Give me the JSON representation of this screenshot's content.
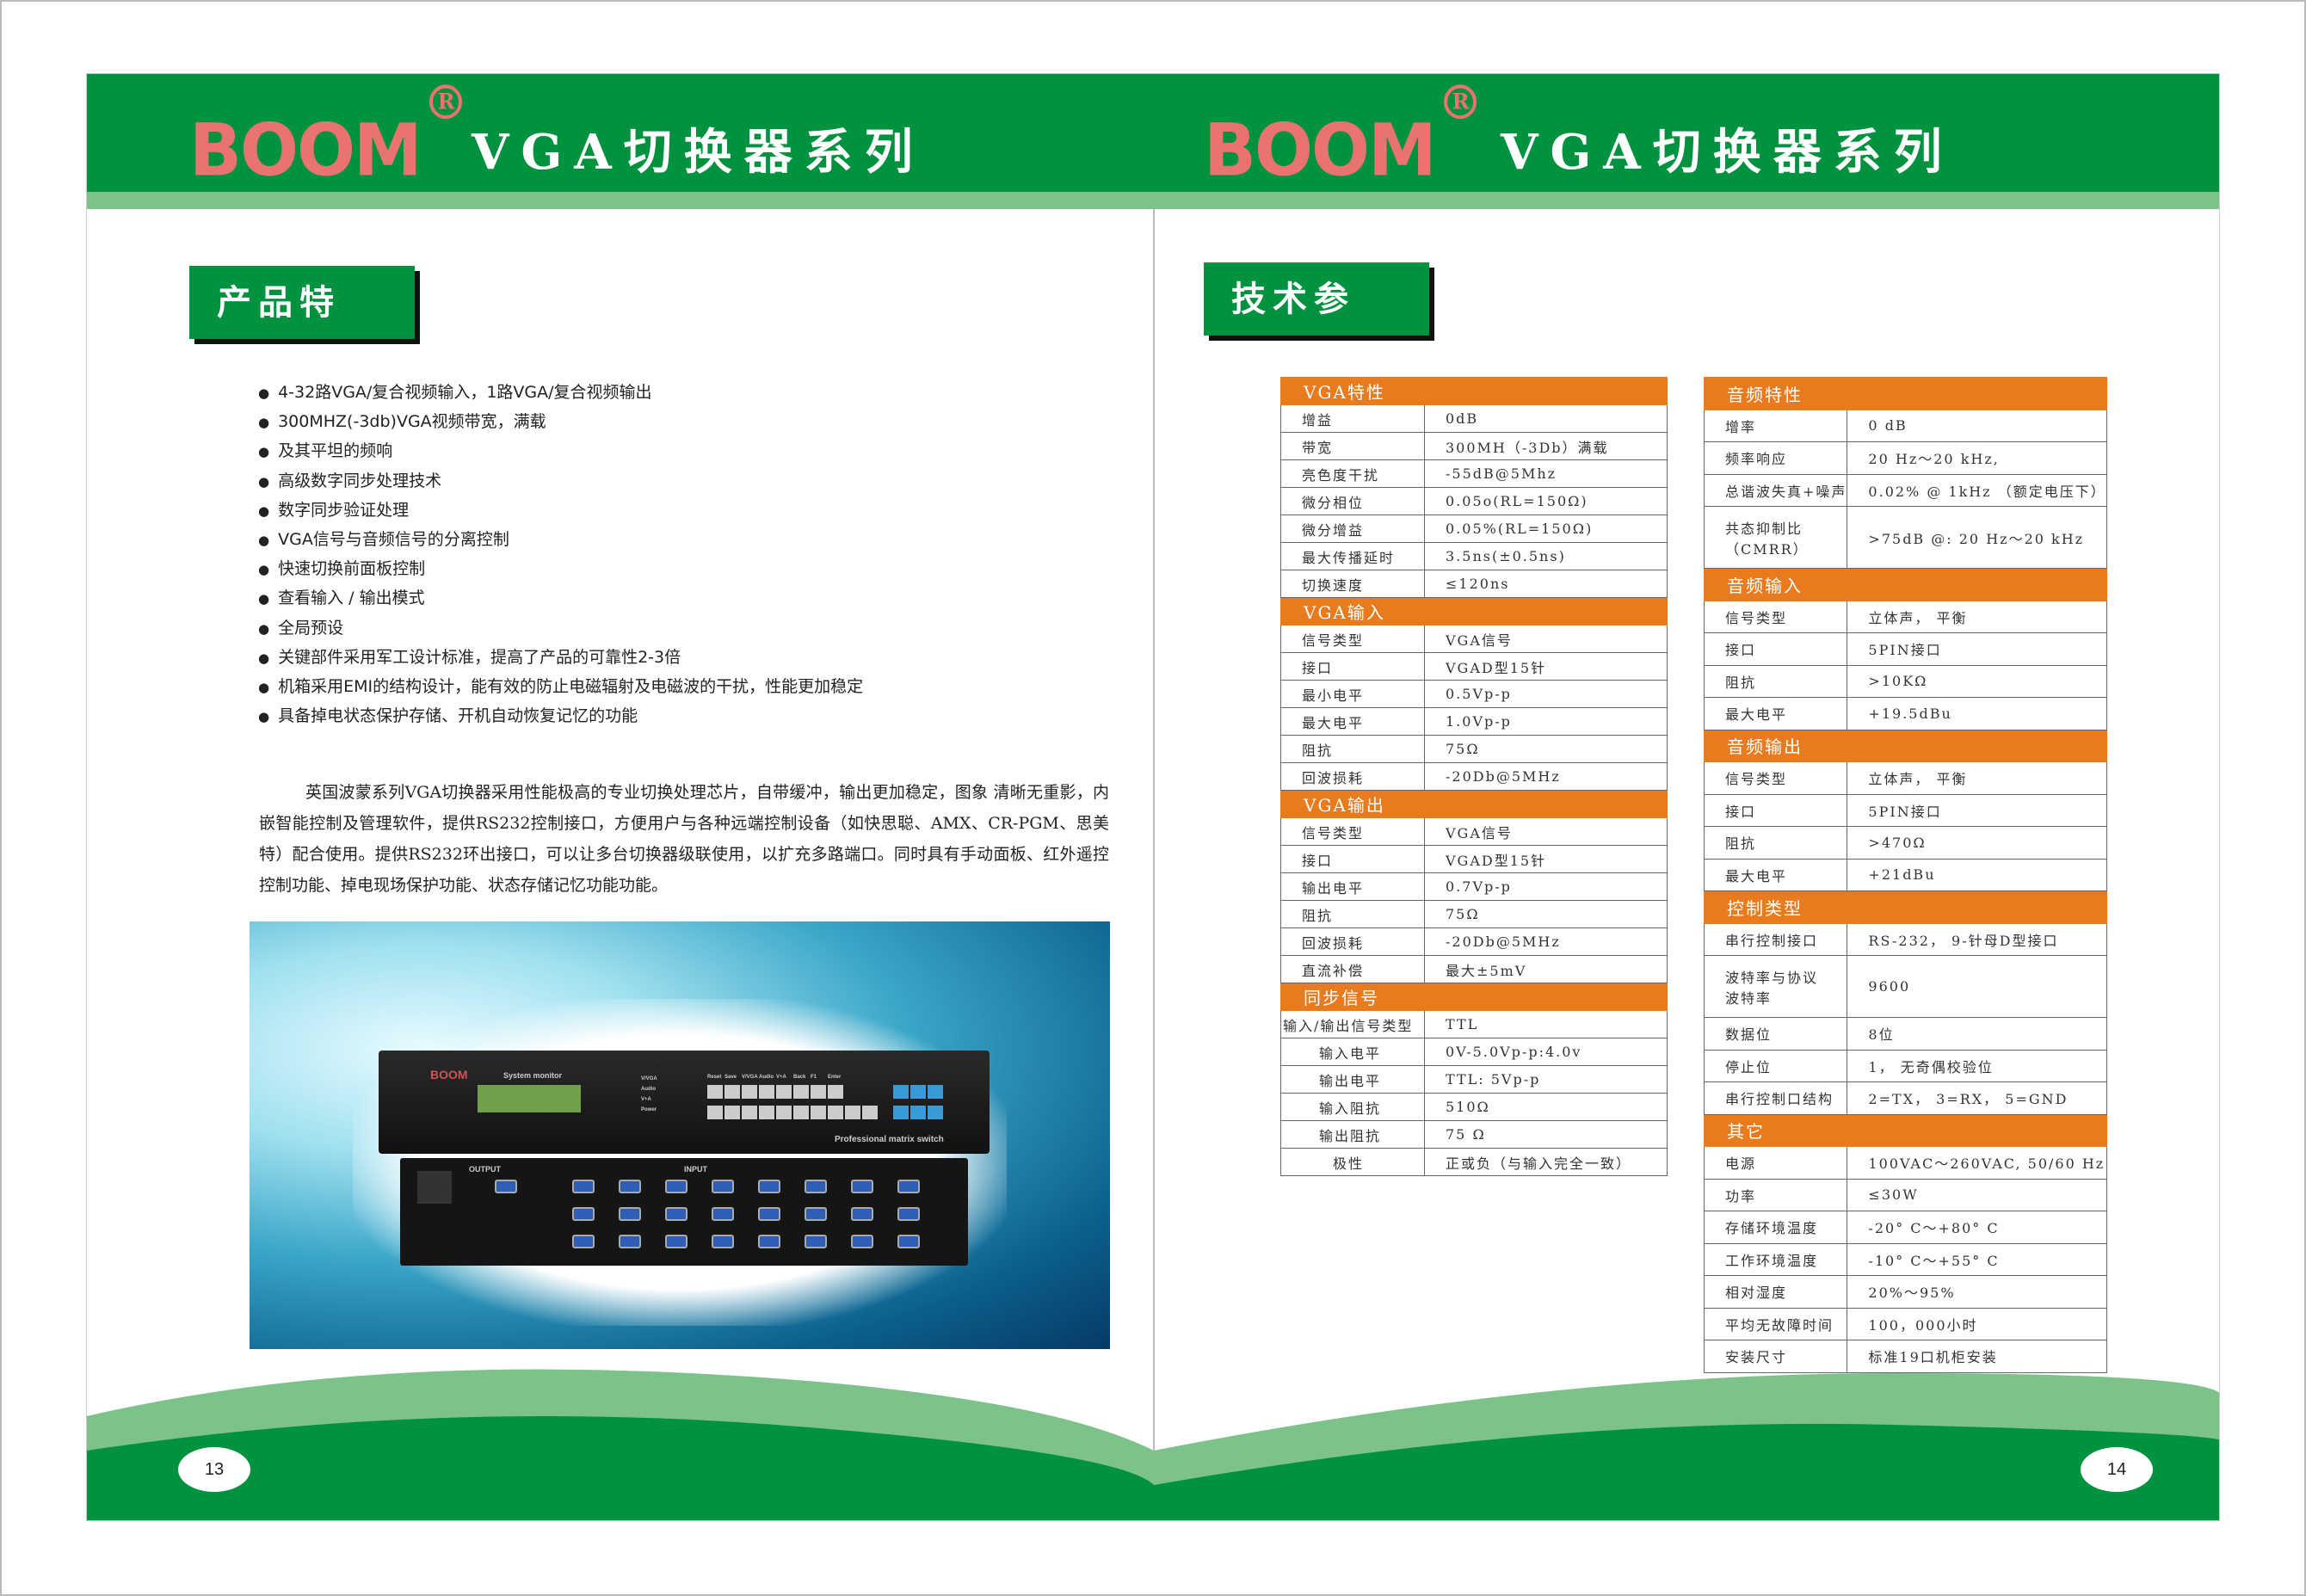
{
  "brand": {
    "logo_text": "BOOM",
    "registered": "R"
  },
  "left_page": {
    "header_title": "VGA切换器系列",
    "section_title": "产品特性：",
    "features": [
      "4-32路VGA/复合视频输入，1路VGA/复合视频输出",
      "300MHZ(-3db)VGA视频带宽，满载",
      "及其平坦的频响",
      "高级数字同步处理技术",
      "数字同步验证处理",
      "VGA信号与音频信号的分离控制",
      "快速切换前面板控制",
      "查看输入 / 输出模式",
      "全局预设",
      "关键部件采用军工设计标准，提高了产品的可靠性2-3倍",
      "机箱采用EMI的结构设计，能有效的防止电磁辐射及电磁波的干扰，性能更加稳定",
      "具备掉电状态保护存储、开机自动恢复记忆的功能"
    ],
    "description": "英国波蒙系列VGA切换器采用性能极高的专业切换处理芯片，自带缓冲，输出更加稳定，图象 清晰无重影，内嵌智能控制及管理软件，提供RS232控制接口，方便用户与各种远端控制设备（如快思聪、AMX、CR-PGM、思美特）配合使用。提供RS232环出接口，可以让多台切换器级联使用，以扩充多路端口。同时具有手动面板、红外遥控控制功能、掉电现场保护功能、状态存储记忆功能功能。",
    "product_photo": {
      "panel_label": "System monitor",
      "tagline": "Professional matrix switch",
      "buttons_top": [
        "Reset",
        "Save",
        "V/VGA",
        "Audio",
        "V+A",
        "Back",
        "F1",
        "Enter"
      ],
      "indicators": [
        "V/VGA",
        "Audio",
        "V+A",
        "Power"
      ],
      "rear_output": "OUTPUT",
      "rear_input": "INPUT"
    },
    "page_number": "13"
  },
  "right_page": {
    "header_title": "VGA切换器系列",
    "section_title": "技术参数：",
    "table_left": [
      {
        "header": "VGA特性",
        "rows": [
          [
            "增益",
            "0dB"
          ],
          [
            "带宽",
            "300MH（-3Db）满载"
          ],
          [
            "亮色度干扰",
            "-55dB@5Mhz"
          ],
          [
            "微分相位",
            "0.05o(RL=150Ω)"
          ],
          [
            "微分增益",
            "0.05%(RL=150Ω)"
          ],
          [
            "最大传播延时",
            "3.5ns(±0.5ns)"
          ],
          [
            "切换速度",
            "≤120ns"
          ]
        ]
      },
      {
        "header": "VGA输入",
        "rows": [
          [
            "信号类型",
            "VGA信号"
          ],
          [
            "接口",
            "VGAD型15针"
          ],
          [
            "最小电平",
            "0.5Vp-p"
          ],
          [
            "最大电平",
            "1.0Vp-p"
          ],
          [
            "阻抗",
            "75Ω"
          ],
          [
            "回波损耗",
            "-20Db@5MHz"
          ]
        ]
      },
      {
        "header": "VGA输出",
        "rows": [
          [
            "信号类型",
            "VGA信号"
          ],
          [
            "接口",
            "VGAD型15针"
          ],
          [
            "输出电平",
            "0.7Vp-p"
          ],
          [
            "阻抗",
            "75Ω"
          ],
          [
            "回波损耗",
            "-20Db@5MHz"
          ],
          [
            "直流补偿",
            "最大±5mV"
          ]
        ]
      },
      {
        "header": "同步信号",
        "rows": [
          [
            "输入/输出信号类型",
            "TTL"
          ],
          [
            "输入电平",
            "0V-5.0Vp-p:4.0v"
          ],
          [
            "输出电平",
            "TTL: 5Vp-p"
          ],
          [
            "输入阻抗",
            "510Ω"
          ],
          [
            "输出阻抗",
            "75 Ω"
          ],
          [
            "极性",
            "正或负（与输入完全一致）"
          ]
        ]
      }
    ],
    "table_right": [
      {
        "header": "音频特性",
        "rows": [
          [
            "增率",
            "0 dB"
          ],
          [
            "频率响应",
            "20 Hz～20 kHz,"
          ],
          [
            "总谐波失真+噪声",
            "0.02% @ 1kHz （额定电压下）"
          ],
          [
            "共态抑制比\n（CMRR）",
            ">75dB @: 20 Hz～20 kHz"
          ]
        ]
      },
      {
        "header": "音频输入",
        "rows": [
          [
            "信号类型",
            "立体声， 平衡"
          ],
          [
            "接口",
            "5PIN接口"
          ],
          [
            "阻抗",
            ">10KΩ"
          ],
          [
            "最大电平",
            "+19.5dBu"
          ]
        ]
      },
      {
        "header": "音频输出",
        "rows": [
          [
            "信号类型",
            "立体声， 平衡"
          ],
          [
            "接口",
            "5PIN接口"
          ],
          [
            "阻抗",
            ">470Ω"
          ],
          [
            "最大电平",
            "+21dBu"
          ]
        ]
      },
      {
        "header": "控制类型",
        "rows": [
          [
            "串行控制接口",
            "RS-232， 9-针母D型接口"
          ],
          [
            "波特率与协议\n波特率",
            "9600"
          ],
          [
            "数据位",
            "8位"
          ],
          [
            "停止位",
            "1， 无奇偶校验位"
          ],
          [
            "串行控制口结构",
            "2=TX， 3=RX， 5=GND"
          ]
        ]
      },
      {
        "header": "其它",
        "rows": [
          [
            "电源",
            "100VAC～260VAC, 50/60 Hz"
          ],
          [
            "功率",
            "≤30W"
          ],
          [
            "存储环境温度",
            "-20° C～+80° C"
          ],
          [
            "工作环境温度",
            "-10° C～+55° C"
          ],
          [
            "相对湿度",
            "20%～95%"
          ],
          [
            "平均无故障时间",
            "100，000小时"
          ],
          [
            "安装尺寸",
            "标准19口机柜安装"
          ]
        ]
      }
    ],
    "page_number": "14"
  },
  "colors": {
    "green": "#00923f",
    "light_green": "#7dc28a",
    "orange": "#e87b1e",
    "logo_red": "#e9736f"
  }
}
